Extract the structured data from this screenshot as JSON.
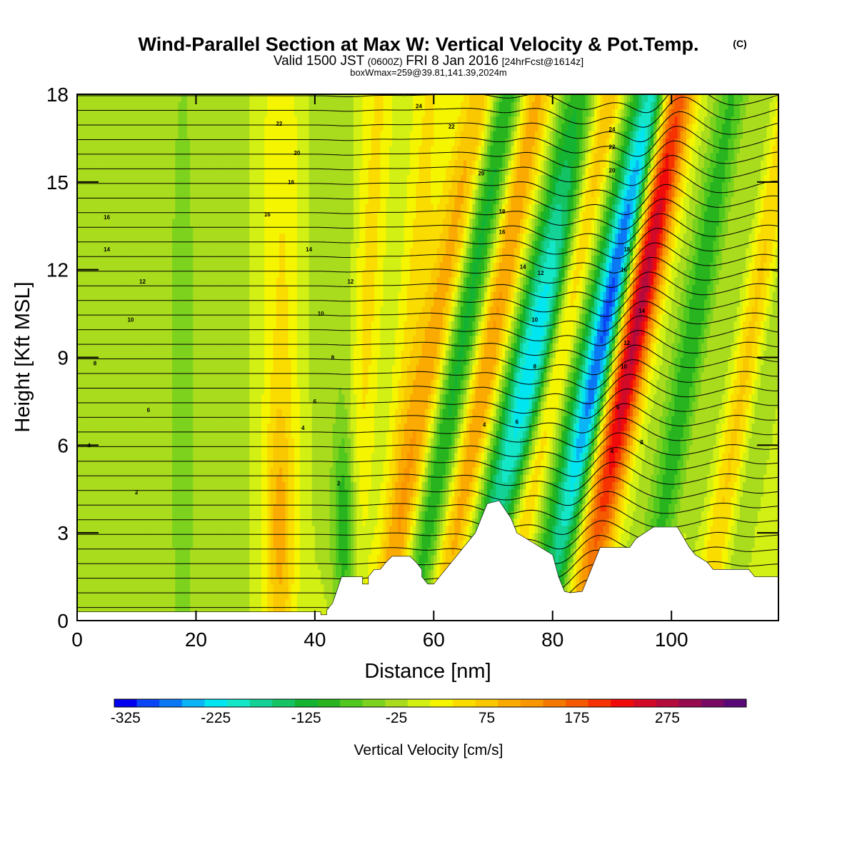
{
  "chart_data": {
    "type": "heatmap",
    "title": "Wind-Parallel Section at Max W: Vertical Velocity & Pot.Temp.",
    "title_mark": "(C)",
    "subtitle_parts": [
      "Valid 1500 JST",
      "(0600Z)",
      "FRI 8 Jan 2016",
      "[24hrFcst@1614z]"
    ],
    "subtitle2": "boxWmax=259@39.81,141.39,2024m",
    "xlabel": "Distance [nm]",
    "ylabel": "Height [Kft MSL]",
    "xlim": [
      0,
      118
    ],
    "ylim": [
      0,
      18
    ],
    "x_ticks": [
      "0",
      "20",
      "40",
      "60",
      "80",
      "100"
    ],
    "y_ticks": [
      "0",
      "3",
      "6",
      "9",
      "12",
      "15",
      "18"
    ],
    "grid": false,
    "colorbar": {
      "title": "Vertical Velocity [cm/s]",
      "tick_labels": [
        "-325",
        "-225",
        "-125",
        "-25",
        "75",
        "175",
        "275"
      ],
      "levels_min": -325,
      "level_step": 25,
      "colors": [
        "#0000f0",
        "#0a46f5",
        "#0a78f5",
        "#0ab4f5",
        "#00e6f0",
        "#14e6c8",
        "#14d296",
        "#14c364",
        "#14b432",
        "#28b41e",
        "#50c81e",
        "#7dd21e",
        "#aadc1e",
        "#d2f014",
        "#f5f500",
        "#fadc00",
        "#fac800",
        "#faaa00",
        "#fa9600",
        "#f57800",
        "#f55a00",
        "#f53200",
        "#f00a0a",
        "#d20a28",
        "#b40a3c",
        "#960a50",
        "#780a64",
        "#5a0a78"
      ]
    },
    "terrain": [
      [
        0,
        0.3
      ],
      [
        41,
        0.3
      ],
      [
        41,
        0.2
      ],
      [
        42,
        0.2
      ],
      [
        42,
        0.35
      ],
      [
        43,
        0.6
      ],
      [
        43.5,
        0.9
      ],
      [
        44,
        1.2
      ],
      [
        44.5,
        1.5
      ],
      [
        46,
        1.5
      ],
      [
        48,
        1.5
      ],
      [
        48,
        1.25
      ],
      [
        49,
        1.25
      ],
      [
        49,
        1.5
      ],
      [
        50,
        1.75
      ],
      [
        51,
        1.75
      ],
      [
        52,
        2.0
      ],
      [
        53,
        2.2
      ],
      [
        56,
        2.2
      ],
      [
        57,
        2.0
      ],
      [
        58,
        1.75
      ],
      [
        58,
        1.5
      ],
      [
        59,
        1.25
      ],
      [
        60,
        1.25
      ],
      [
        61,
        1.5
      ],
      [
        62,
        1.75
      ],
      [
        63,
        2.0
      ],
      [
        64,
        2.25
      ],
      [
        65,
        2.5
      ],
      [
        66,
        2.75
      ],
      [
        67,
        3.0
      ],
      [
        68,
        3.5
      ],
      [
        69,
        4.0
      ],
      [
        71,
        4.1
      ],
      [
        72,
        3.8
      ],
      [
        73,
        3.5
      ],
      [
        74,
        3.0
      ],
      [
        76,
        2.75
      ],
      [
        78,
        2.5
      ],
      [
        80,
        2.25
      ],
      [
        81,
        1.5
      ],
      [
        82,
        1.0
      ],
      [
        83,
        0.95
      ],
      [
        85,
        1.0
      ],
      [
        86,
        1.5
      ],
      [
        87,
        2.0
      ],
      [
        88,
        2.5
      ],
      [
        90,
        2.5
      ],
      [
        91,
        2.5
      ],
      [
        93,
        2.5
      ],
      [
        94,
        2.8
      ],
      [
        97,
        3.2
      ],
      [
        101,
        3.2
      ],
      [
        103,
        2.5
      ],
      [
        104,
        2.25
      ],
      [
        106,
        2.0
      ],
      [
        107,
        1.75
      ],
      [
        113,
        1.75
      ],
      [
        114,
        1.5
      ],
      [
        118,
        1.5
      ]
    ],
    "w_features": [
      {
        "x": 3,
        "z": 9,
        "w": -40,
        "sx": 3,
        "sz": 20,
        "tilt": 0
      },
      {
        "x": 11,
        "z": 9,
        "w": -25,
        "sx": 2.5,
        "sz": 20,
        "tilt": 0
      },
      {
        "x": 16,
        "z": 8,
        "w": -25,
        "sx": 2.5,
        "sz": 20,
        "tilt": 0
      },
      {
        "x": 19,
        "z": 8,
        "w": -35,
        "sx": 2.5,
        "sz": 20,
        "tilt": 0
      },
      {
        "x": 27,
        "z": 9,
        "w": -30,
        "sx": 3,
        "sz": 20,
        "tilt": 0
      },
      {
        "x": 34,
        "z": 3,
        "w": 70,
        "sx": 1.5,
        "sz": 3,
        "tilt": 0
      },
      {
        "x": 35,
        "z": 10,
        "w": 40,
        "sx": 2.5,
        "sz": 10,
        "tilt": 0
      },
      {
        "x": 39,
        "z": 12,
        "w": -30,
        "sx": 2.5,
        "sz": 15,
        "tilt": 0
      },
      {
        "x": 45,
        "z": 3,
        "w": -110,
        "sx": 1.4,
        "sz": 2.5,
        "tilt": 0
      },
      {
        "x": 45,
        "z": 9,
        "w": -40,
        "sx": 2,
        "sz": 14,
        "tilt": 0
      },
      {
        "x": 48,
        "z": 8,
        "w": 50,
        "sx": 2,
        "sz": 12,
        "tilt": 0.3
      },
      {
        "x": 52,
        "z": 9,
        "w": -25,
        "sx": 2,
        "sz": 12,
        "tilt": 0.3
      },
      {
        "x": 56,
        "z": 10,
        "w": 40,
        "sx": 2,
        "sz": 14,
        "tilt": 0.4
      },
      {
        "x": 61,
        "z": 10,
        "w": 110,
        "sx": 2.2,
        "sz": 12,
        "tilt": 0.9
      },
      {
        "x": 66,
        "z": 11,
        "w": -150,
        "sx": 2.2,
        "sz": 14,
        "tilt": 0.9
      },
      {
        "x": 70,
        "z": 10,
        "w": 120,
        "sx": 2,
        "sz": 12,
        "tilt": 0.9
      },
      {
        "x": 74,
        "z": 8,
        "w": -130,
        "sx": 2.2,
        "sz": 14,
        "tilt": 1.0
      },
      {
        "x": 78,
        "z": 9,
        "w": -200,
        "sx": 2.2,
        "sz": 5,
        "tilt": 1.0
      },
      {
        "x": 83,
        "z": 11,
        "w": 140,
        "sx": 2.2,
        "sz": 14,
        "tilt": 1.0
      },
      {
        "x": 86,
        "z": 11,
        "w": -110,
        "sx": 2,
        "sz": 13,
        "tilt": 1.0
      },
      {
        "x": 90,
        "z": 11,
        "w": -300,
        "sx": 1.8,
        "sz": 8,
        "tilt": 1.0
      },
      {
        "x": 95,
        "z": 11,
        "w": 280,
        "sx": 2.2,
        "sz": 8,
        "tilt": 0.9
      },
      {
        "x": 99,
        "z": 12,
        "w": -40,
        "sx": 2,
        "sz": 12,
        "tilt": 0.8
      },
      {
        "x": 104,
        "z": 10,
        "w": -120,
        "sx": 2.2,
        "sz": 14,
        "tilt": 0.8
      },
      {
        "x": 107,
        "z": 9,
        "w": 60,
        "sx": 2,
        "sz": 12,
        "tilt": 0.8
      },
      {
        "x": 110,
        "z": 11,
        "w": -80,
        "sx": 2,
        "sz": 12,
        "tilt": 0.8
      },
      {
        "x": 113,
        "z": 9,
        "w": 80,
        "sx": 2,
        "sz": 12,
        "tilt": 0.8
      },
      {
        "x": 117,
        "z": 10,
        "w": -60,
        "sx": 2,
        "sz": 14,
        "tilt": 0.8
      }
    ],
    "contour_labels": [
      {
        "text": "2",
        "x": 10,
        "y": 4.4
      },
      {
        "text": "2",
        "x": 44,
        "y": 4.7
      },
      {
        "text": "4",
        "x": 2,
        "y": 6.0
      },
      {
        "text": "4",
        "x": 38,
        "y": 6.6
      },
      {
        "text": "4",
        "x": 68.5,
        "y": 6.7
      },
      {
        "text": "4",
        "x": 90,
        "y": 5.8
      },
      {
        "text": "6",
        "x": 12,
        "y": 7.2
      },
      {
        "text": "6",
        "x": 40,
        "y": 7.5
      },
      {
        "text": "6",
        "x": 74,
        "y": 6.8
      },
      {
        "text": "6",
        "x": 91,
        "y": 7.3
      },
      {
        "text": "8",
        "x": 3,
        "y": 8.8
      },
      {
        "text": "8",
        "x": 43,
        "y": 9.0
      },
      {
        "text": "8",
        "x": 77,
        "y": 8.7
      },
      {
        "text": "8",
        "x": 95,
        "y": 6.1
      },
      {
        "text": "10",
        "x": 9,
        "y": 10.3
      },
      {
        "text": "10",
        "x": 41,
        "y": 10.5
      },
      {
        "text": "10",
        "x": 77,
        "y": 10.3
      },
      {
        "text": "10",
        "x": 92,
        "y": 8.7
      },
      {
        "text": "12",
        "x": 11,
        "y": 11.6
      },
      {
        "text": "12",
        "x": 46,
        "y": 11.6
      },
      {
        "text": "12",
        "x": 78,
        "y": 11.9
      },
      {
        "text": "12",
        "x": 92.5,
        "y": 9.5
      },
      {
        "text": "14",
        "x": 5,
        "y": 12.7
      },
      {
        "text": "14",
        "x": 39,
        "y": 12.7
      },
      {
        "text": "14",
        "x": 75,
        "y": 12.1
      },
      {
        "text": "14",
        "x": 95,
        "y": 10.6
      },
      {
        "text": "16",
        "x": 5,
        "y": 13.8
      },
      {
        "text": "16",
        "x": 32,
        "y": 13.9
      },
      {
        "text": "16",
        "x": 71.5,
        "y": 13.3
      },
      {
        "text": "16",
        "x": 92,
        "y": 12.0
      },
      {
        "text": "16",
        "x": 36,
        "y": 15.0
      },
      {
        "text": "18",
        "x": 71.5,
        "y": 14.0
      },
      {
        "text": "18",
        "x": 92.5,
        "y": 12.7
      },
      {
        "text": "20",
        "x": 37,
        "y": 16.0
      },
      {
        "text": "20",
        "x": 68,
        "y": 15.3
      },
      {
        "text": "20",
        "x": 90,
        "y": 15.4
      },
      {
        "text": "22",
        "x": 34,
        "y": 17.0
      },
      {
        "text": "22",
        "x": 63,
        "y": 16.9
      },
      {
        "text": "22",
        "x": 90,
        "y": 16.2
      },
      {
        "text": "24",
        "x": 57.5,
        "y": 17.6
      },
      {
        "text": "24",
        "x": 90,
        "y": 16.8
      }
    ]
  }
}
